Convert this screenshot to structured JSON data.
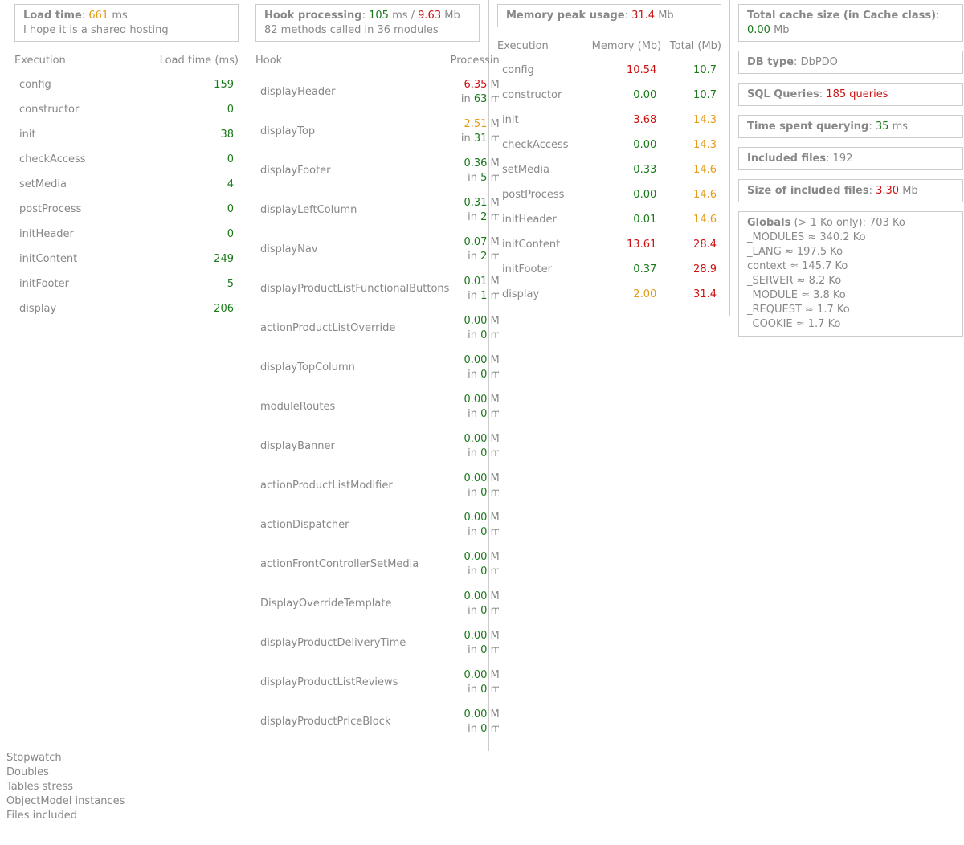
{
  "load_time": {
    "label": "Load time",
    "value": "661",
    "unit": "ms",
    "comment": "I hope it is a shared hosting"
  },
  "hook_processing": {
    "label": "Hook processing",
    "time": "105",
    "time_unit": "ms /",
    "memory": "9.63",
    "memory_unit": "Mb",
    "summary": "82 methods called in 36 modules"
  },
  "memory_peak": {
    "label": "Memory peak usage",
    "value": "31.4",
    "unit": "Mb"
  },
  "load_table": {
    "col_execution": "Execution",
    "col_load": "Load time (ms)",
    "rows": [
      {
        "name": "config",
        "value": "159"
      },
      {
        "name": "constructor",
        "value": "0"
      },
      {
        "name": "init",
        "value": "38"
      },
      {
        "name": "checkAccess",
        "value": "0"
      },
      {
        "name": "setMedia",
        "value": "4"
      },
      {
        "name": "postProcess",
        "value": "0"
      },
      {
        "name": "initHeader",
        "value": "0"
      },
      {
        "name": "initContent",
        "value": "249"
      },
      {
        "name": "initFooter",
        "value": "5"
      },
      {
        "name": "display",
        "value": "206"
      }
    ]
  },
  "hook_table": {
    "col_hook": "Hook",
    "col_processing": "Processing",
    "mb_unit": "Mb",
    "in_label": "in",
    "ms_unit": "ms",
    "rows": [
      {
        "name": "displayHeader",
        "mb": "6.35",
        "ms": "63",
        "mb_color": "#cc1111",
        "ms_color": "#1a7a1a"
      },
      {
        "name": "displayTop",
        "mb": "2.51",
        "ms": "31",
        "mb_color": "#e39b1a",
        "ms_color": "#1a7a1a"
      },
      {
        "name": "displayFooter",
        "mb": "0.36",
        "ms": "5",
        "mb_color": "#1a7a1a",
        "ms_color": "#1a7a1a"
      },
      {
        "name": "displayLeftColumn",
        "mb": "0.31",
        "ms": "2",
        "mb_color": "#1a7a1a",
        "ms_color": "#1a7a1a"
      },
      {
        "name": "displayNav",
        "mb": "0.07",
        "ms": "2",
        "mb_color": "#1a7a1a",
        "ms_color": "#1a7a1a"
      },
      {
        "name": "displayProductListFunctionalButtons",
        "mb": "0.01",
        "ms": "1",
        "mb_color": "#1a7a1a",
        "ms_color": "#1a7a1a"
      },
      {
        "name": "actionProductListOverride",
        "mb": "0.00",
        "ms": "0",
        "mb_color": "#1a7a1a",
        "ms_color": "#1a7a1a"
      },
      {
        "name": "displayTopColumn",
        "mb": "0.00",
        "ms": "0",
        "mb_color": "#1a7a1a",
        "ms_color": "#1a7a1a"
      },
      {
        "name": "moduleRoutes",
        "mb": "0.00",
        "ms": "0",
        "mb_color": "#1a7a1a",
        "ms_color": "#1a7a1a"
      },
      {
        "name": "displayBanner",
        "mb": "0.00",
        "ms": "0",
        "mb_color": "#1a7a1a",
        "ms_color": "#1a7a1a"
      },
      {
        "name": "actionProductListModifier",
        "mb": "0.00",
        "ms": "0",
        "mb_color": "#1a7a1a",
        "ms_color": "#1a7a1a"
      },
      {
        "name": "actionDispatcher",
        "mb": "0.00",
        "ms": "0",
        "mb_color": "#1a7a1a",
        "ms_color": "#1a7a1a"
      },
      {
        "name": "actionFrontControllerSetMedia",
        "mb": "0.00",
        "ms": "0",
        "mb_color": "#1a7a1a",
        "ms_color": "#1a7a1a"
      },
      {
        "name": "DisplayOverrideTemplate",
        "mb": "0.00",
        "ms": "0",
        "mb_color": "#1a7a1a",
        "ms_color": "#1a7a1a"
      },
      {
        "name": "displayProductDeliveryTime",
        "mb": "0.00",
        "ms": "0",
        "mb_color": "#1a7a1a",
        "ms_color": "#1a7a1a"
      },
      {
        "name": "displayProductListReviews",
        "mb": "0.00",
        "ms": "0",
        "mb_color": "#1a7a1a",
        "ms_color": "#1a7a1a"
      },
      {
        "name": "displayProductPriceBlock",
        "mb": "0.00",
        "ms": "0",
        "mb_color": "#1a7a1a",
        "ms_color": "#1a7a1a"
      }
    ]
  },
  "memory_table": {
    "col_execution": "Execution",
    "col_memory": "Memory (Mb)",
    "col_total": "Total (Mb)",
    "rows": [
      {
        "name": "config",
        "memory": "10.54",
        "total": "10.7",
        "memory_color": "#cc1111",
        "total_color": "#1a7a1a"
      },
      {
        "name": "constructor",
        "memory": "0.00",
        "total": "10.7",
        "memory_color": "#1a7a1a",
        "total_color": "#1a7a1a"
      },
      {
        "name": "init",
        "memory": "3.68",
        "total": "14.3",
        "memory_color": "#cc1111",
        "total_color": "#e39b1a"
      },
      {
        "name": "checkAccess",
        "memory": "0.00",
        "total": "14.3",
        "memory_color": "#1a7a1a",
        "total_color": "#e39b1a"
      },
      {
        "name": "setMedia",
        "memory": "0.33",
        "total": "14.6",
        "memory_color": "#1a7a1a",
        "total_color": "#e39b1a"
      },
      {
        "name": "postProcess",
        "memory": "0.00",
        "total": "14.6",
        "memory_color": "#1a7a1a",
        "total_color": "#e39b1a"
      },
      {
        "name": "initHeader",
        "memory": "0.01",
        "total": "14.6",
        "memory_color": "#1a7a1a",
        "total_color": "#e39b1a"
      },
      {
        "name": "initContent",
        "memory": "13.61",
        "total": "28.4",
        "memory_color": "#cc1111",
        "total_color": "#cc1111"
      },
      {
        "name": "initFooter",
        "memory": "0.37",
        "total": "28.9",
        "memory_color": "#1a7a1a",
        "total_color": "#cc1111"
      },
      {
        "name": "display",
        "memory": "2.00",
        "total": "31.4",
        "memory_color": "#e39b1a",
        "total_color": "#cc1111"
      }
    ]
  },
  "cache": {
    "label": "Total cache size (in Cache class)",
    "value": "0.00",
    "unit": "Mb"
  },
  "db_type": {
    "label": "DB type",
    "value": "DbPDO"
  },
  "sql_queries": {
    "label": "SQL Queries",
    "value": "185 queries"
  },
  "time_querying": {
    "label": "Time spent querying",
    "value": "35",
    "unit": "ms"
  },
  "included_files": {
    "label": "Included files",
    "value": "192"
  },
  "included_size": {
    "label": "Size of included files",
    "value": "3.30",
    "unit": "Mb"
  },
  "globals": {
    "label": "Globals",
    "note": "(> 1 Ko only): 703 Ko",
    "items": [
      "_MODULES ≈ 340.2 Ko",
      "_LANG ≈ 197.5 Ko",
      "context ≈ 145.7 Ko",
      "_SERVER ≈ 8.2 Ko",
      "_MODULE ≈ 3.8 Ko",
      "_REQUEST ≈ 1.7 Ko",
      "_COOKIE ≈ 1.7 Ko"
    ]
  },
  "toggles": [
    "Stopwatch",
    "Doubles",
    "Tables stress",
    "ObjectModel instances",
    "Files included"
  ]
}
